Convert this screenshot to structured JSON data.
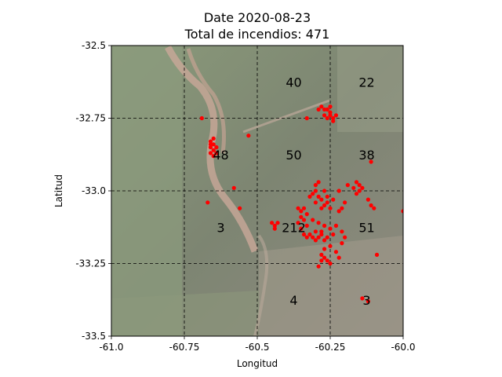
{
  "chart_data": {
    "type": "scatter",
    "title": "Date 2020-08-23",
    "subtitle": "Total de incendios: 471",
    "xlabel": "Longitud",
    "ylabel": "Latitud",
    "xlim": [
      -61.0,
      -60.0
    ],
    "ylim": [
      -33.5,
      -32.5
    ],
    "x_ticks": [
      -61.0,
      -60.75,
      -60.5,
      -60.25,
      -60.0
    ],
    "x_tick_labels": [
      "-61.0",
      "-60.75",
      "-60.5",
      "-60.25",
      "-60.0"
    ],
    "y_ticks": [
      -33.5,
      -33.25,
      -33.0,
      -32.75,
      -32.5
    ],
    "y_tick_labels": [
      "-33.5",
      "-33.25",
      "-33.0",
      "-32.75",
      "-32.5"
    ],
    "grid": true,
    "grid_style": "dashed",
    "grid_lines_x": [
      -60.75,
      -60.5,
      -60.25
    ],
    "grid_lines_y": [
      -33.25,
      -33.0,
      -32.75
    ],
    "background": "satellite-image",
    "marker_color": "#ff0000",
    "cell_counts": [
      {
        "lon": -60.375,
        "lat": -32.625,
        "label": "40"
      },
      {
        "lon": -60.125,
        "lat": -32.625,
        "label": "22"
      },
      {
        "lon": -60.625,
        "lat": -32.875,
        "label": "48"
      },
      {
        "lon": -60.375,
        "lat": -32.875,
        "label": "50"
      },
      {
        "lon": -60.125,
        "lat": -32.875,
        "label": "38"
      },
      {
        "lon": -60.625,
        "lat": -33.125,
        "label": "3"
      },
      {
        "lon": -60.375,
        "lat": -33.125,
        "label": "212"
      },
      {
        "lon": -60.125,
        "lat": -33.125,
        "label": "51"
      },
      {
        "lon": -60.375,
        "lat": -33.375,
        "label": "4"
      },
      {
        "lon": -60.125,
        "lat": -33.375,
        "label": "3"
      }
    ],
    "points": [
      [
        -60.69,
        -32.75
      ],
      [
        -60.53,
        -32.81
      ],
      [
        -60.33,
        -32.75
      ],
      [
        -60.67,
        -33.04
      ],
      [
        -60.58,
        -32.99
      ],
      [
        -60.56,
        -33.06
      ],
      [
        -60.11,
        -32.9
      ],
      [
        -60.0,
        -33.07
      ],
      [
        -60.09,
        -33.22
      ],
      [
        -60.12,
        -33.38
      ],
      [
        -60.14,
        -33.37
      ],
      [
        -60.25,
        -33.25
      ],
      [
        -60.29,
        -33.26
      ],
      [
        -60.66,
        -32.83
      ],
      [
        -60.65,
        -32.84
      ],
      [
        -60.66,
        -32.85
      ],
      [
        -60.64,
        -32.85
      ],
      [
        -60.65,
        -32.86
      ],
      [
        -60.66,
        -32.87
      ],
      [
        -60.64,
        -32.87
      ],
      [
        -60.65,
        -32.88
      ],
      [
        -60.66,
        -32.84
      ],
      [
        -60.65,
        -32.82
      ],
      [
        -60.28,
        -32.71
      ],
      [
        -60.27,
        -32.72
      ],
      [
        -60.26,
        -32.72
      ],
      [
        -60.25,
        -32.73
      ],
      [
        -60.25,
        -32.74
      ],
      [
        -60.24,
        -32.75
      ],
      [
        -60.23,
        -32.74
      ],
      [
        -60.26,
        -32.75
      ],
      [
        -60.24,
        -32.76
      ],
      [
        -60.27,
        -32.74
      ],
      [
        -60.29,
        -32.72
      ],
      [
        -60.25,
        -32.71
      ],
      [
        -60.3,
        -32.98
      ],
      [
        -60.29,
        -32.97
      ],
      [
        -60.3,
        -33.0
      ],
      [
        -60.31,
        -33.01
      ],
      [
        -60.29,
        -33.02
      ],
      [
        -60.28,
        -33.03
      ],
      [
        -60.3,
        -33.04
      ],
      [
        -60.27,
        -33.0
      ],
      [
        -60.26,
        -33.02
      ],
      [
        -60.32,
        -33.02
      ],
      [
        -60.28,
        -33.06
      ],
      [
        -60.27,
        -33.05
      ],
      [
        -60.26,
        -33.04
      ],
      [
        -60.25,
        -33.06
      ],
      [
        -60.24,
        -33.03
      ],
      [
        -60.22,
        -33.0
      ],
      [
        -60.19,
        -32.98
      ],
      [
        -60.16,
        -32.97
      ],
      [
        -60.15,
        -32.98
      ],
      [
        -60.14,
        -32.99
      ],
      [
        -60.15,
        -33.0
      ],
      [
        -60.17,
        -32.99
      ],
      [
        -60.16,
        -33.01
      ],
      [
        -60.12,
        -33.03
      ],
      [
        -60.11,
        -33.05
      ],
      [
        -60.1,
        -33.06
      ],
      [
        -60.2,
        -33.04
      ],
      [
        -60.21,
        -33.06
      ],
      [
        -60.22,
        -33.07
      ],
      [
        -60.36,
        -33.06
      ],
      [
        -60.35,
        -33.07
      ],
      [
        -60.34,
        -33.06
      ],
      [
        -60.33,
        -33.08
      ],
      [
        -60.35,
        -33.09
      ],
      [
        -60.34,
        -33.1
      ],
      [
        -60.36,
        -33.11
      ],
      [
        -60.33,
        -33.12
      ],
      [
        -60.35,
        -33.13
      ],
      [
        -60.45,
        -33.11
      ],
      [
        -60.44,
        -33.12
      ],
      [
        -60.43,
        -33.11
      ],
      [
        -60.44,
        -33.13
      ],
      [
        -60.31,
        -33.1
      ],
      [
        -60.29,
        -33.11
      ],
      [
        -60.27,
        -33.12
      ],
      [
        -60.25,
        -33.13
      ],
      [
        -60.23,
        -33.12
      ],
      [
        -60.21,
        -33.14
      ],
      [
        -60.2,
        -33.16
      ],
      [
        -60.24,
        -33.15
      ],
      [
        -60.34,
        -33.15
      ],
      [
        -60.33,
        -33.16
      ],
      [
        -60.32,
        -33.15
      ],
      [
        -60.31,
        -33.16
      ],
      [
        -60.3,
        -33.17
      ],
      [
        -60.29,
        -33.16
      ],
      [
        -60.28,
        -33.15
      ],
      [
        -60.27,
        -33.17
      ],
      [
        -60.26,
        -33.16
      ],
      [
        -60.3,
        -33.14
      ],
      [
        -60.28,
        -33.14
      ],
      [
        -60.28,
        -33.22
      ],
      [
        -60.27,
        -33.23
      ],
      [
        -60.26,
        -33.24
      ],
      [
        -60.28,
        -33.24
      ],
      [
        -60.27,
        -33.2
      ],
      [
        -60.25,
        -33.19
      ],
      [
        -60.23,
        -33.21
      ],
      [
        -60.22,
        -33.23
      ],
      [
        -60.21,
        -33.18
      ]
    ]
  }
}
